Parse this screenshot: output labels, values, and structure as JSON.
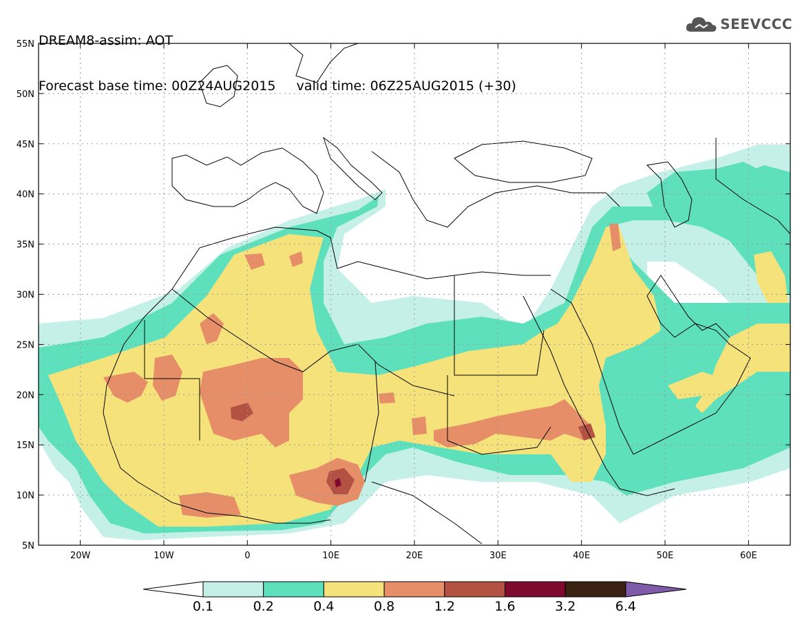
{
  "header": {
    "line1": "DREAM8-assim: AOT",
    "line2": "Forecast base time: 00Z24AUG2015     valid time: 06Z25AUG2015 (+30)"
  },
  "logo": {
    "icon": "cloud-icon",
    "text": "SEEVCCC"
  },
  "map": {
    "lat_ticks": [
      "55N",
      "50N",
      "45N",
      "40N",
      "35N",
      "30N",
      "25N",
      "20N",
      "15N",
      "10N",
      "5N"
    ],
    "lon_ticks": [
      "20W",
      "10W",
      "0",
      "10E",
      "20E",
      "30E",
      "40E",
      "50E",
      "60E"
    ],
    "lon_range": [
      -25,
      65
    ],
    "lat_range": [
      5,
      55
    ]
  },
  "colorbar": {
    "labels": [
      "0.1",
      "0.2",
      "0.4",
      "0.8",
      "1.2",
      "1.6",
      "3.2",
      "6.4"
    ],
    "colors": [
      "#ffffff",
      "#c4f0e8",
      "#5fe0bd",
      "#f6e27a",
      "#e68e68",
      "#b35243",
      "#7f0a2e",
      "#3b2213",
      "#7f5aa8"
    ]
  }
}
